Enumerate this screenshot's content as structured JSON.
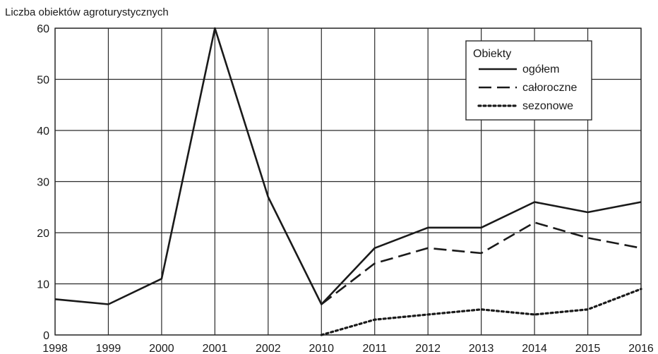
{
  "chart_data": {
    "type": "line",
    "title": "",
    "ylabel": "Liczba obiektów agroturystycznych",
    "xlabel": "",
    "categories": [
      "1998",
      "1999",
      "2000",
      "2001",
      "2002",
      "2010",
      "2011",
      "2012",
      "2013",
      "2014",
      "2015",
      "2016"
    ],
    "ylim": [
      0,
      60
    ],
    "yticks": [
      0,
      10,
      20,
      30,
      40,
      50,
      60
    ],
    "grid": true,
    "legend": {
      "title": "Obiekty",
      "placement": "top-right",
      "entries": [
        "ogółem",
        "całoroczne",
        "sezonowe"
      ]
    },
    "series": [
      {
        "name": "ogółem",
        "style": "solid",
        "values": [
          7,
          6,
          11,
          60,
          27,
          6,
          17,
          21,
          21,
          26,
          24,
          26
        ]
      },
      {
        "name": "całoroczne",
        "style": "dashed",
        "values": [
          null,
          null,
          null,
          null,
          null,
          6,
          14,
          17,
          16,
          22,
          19,
          17
        ]
      },
      {
        "name": "sezonowe",
        "style": "dotted",
        "values": [
          null,
          null,
          null,
          null,
          null,
          0,
          3,
          4,
          5,
          4,
          5,
          9
        ]
      }
    ],
    "line_color": "#1a1a1a",
    "grid_color": "#2a2a2a"
  }
}
